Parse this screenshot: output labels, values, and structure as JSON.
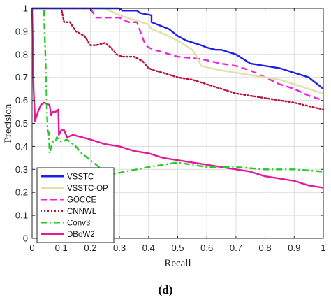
{
  "panel_label": "(d)",
  "chart_data": {
    "type": "line",
    "xlabel": "Recall",
    "ylabel": "Precision",
    "xlim": [
      0,
      1
    ],
    "ylim": [
      0,
      1
    ],
    "xticks": [
      "0",
      "0.1",
      "0.2",
      "0.3",
      "0.4",
      "0.5",
      "0.6",
      "0.7",
      "0.8",
      "0.9",
      "1"
    ],
    "yticks": [
      "0",
      "0.1",
      "0.2",
      "0.3",
      "0.4",
      "0.5",
      "0.6",
      "0.7",
      "0.8",
      "0.9",
      "1"
    ],
    "grid": true,
    "legend_position": "bottom-left",
    "series": [
      {
        "name": "VSSTC",
        "color": "#1f1fe6",
        "style": "solid",
        "points": [
          [
            0,
            1
          ],
          [
            0.3,
            1
          ],
          [
            0.31,
            0.99
          ],
          [
            0.36,
            0.99
          ],
          [
            0.37,
            0.98
          ],
          [
            0.41,
            0.97
          ],
          [
            0.41,
            0.94
          ],
          [
            0.47,
            0.91
          ],
          [
            0.49,
            0.89
          ],
          [
            0.5,
            0.88
          ],
          [
            0.53,
            0.86
          ],
          [
            0.58,
            0.84
          ],
          [
            0.6,
            0.83
          ],
          [
            0.63,
            0.82
          ],
          [
            0.65,
            0.82
          ],
          [
            0.7,
            0.8
          ],
          [
            0.75,
            0.76
          ],
          [
            0.8,
            0.75
          ],
          [
            0.85,
            0.74
          ],
          [
            0.9,
            0.72
          ],
          [
            0.95,
            0.7
          ],
          [
            1,
            0.65
          ]
        ]
      },
      {
        "name": "VSSTC-OP",
        "color": "#e0e0a8",
        "style": "solid",
        "points": [
          [
            0,
            1
          ],
          [
            0.25,
            1
          ],
          [
            0.3,
            0.97
          ],
          [
            0.35,
            0.95
          ],
          [
            0.4,
            0.93
          ],
          [
            0.41,
            0.91
          ],
          [
            0.45,
            0.89
          ],
          [
            0.5,
            0.86
          ],
          [
            0.55,
            0.82
          ],
          [
            0.57,
            0.78
          ],
          [
            0.58,
            0.75
          ],
          [
            0.65,
            0.73
          ],
          [
            0.7,
            0.72
          ],
          [
            0.75,
            0.71
          ],
          [
            0.8,
            0.7
          ],
          [
            0.85,
            0.69
          ],
          [
            0.9,
            0.67
          ],
          [
            0.95,
            0.65
          ],
          [
            1,
            0.63
          ]
        ]
      },
      {
        "name": "GOCCE",
        "color": "#ee22dd",
        "style": "dashed",
        "points": [
          [
            0,
            1
          ],
          [
            0.2,
            1
          ],
          [
            0.22,
            0.96
          ],
          [
            0.3,
            0.96
          ],
          [
            0.33,
            0.94
          ],
          [
            0.36,
            0.94
          ],
          [
            0.38,
            0.87
          ],
          [
            0.39,
            0.84
          ],
          [
            0.4,
            0.83
          ],
          [
            0.42,
            0.82
          ],
          [
            0.5,
            0.79
          ],
          [
            0.58,
            0.78
          ],
          [
            0.65,
            0.76
          ],
          [
            0.7,
            0.75
          ],
          [
            0.75,
            0.73
          ],
          [
            0.8,
            0.7
          ],
          [
            0.85,
            0.67
          ],
          [
            0.9,
            0.65
          ],
          [
            0.95,
            0.62
          ],
          [
            1,
            0.6
          ]
        ]
      },
      {
        "name": "CNNWL",
        "color": "#b5123d",
        "style": "dotted",
        "points": [
          [
            0,
            1
          ],
          [
            0.1,
            1
          ],
          [
            0.11,
            0.94
          ],
          [
            0.13,
            0.94
          ],
          [
            0.15,
            0.9
          ],
          [
            0.18,
            0.88
          ],
          [
            0.2,
            0.84
          ],
          [
            0.22,
            0.84
          ],
          [
            0.25,
            0.85
          ],
          [
            0.27,
            0.83
          ],
          [
            0.29,
            0.8
          ],
          [
            0.31,
            0.79
          ],
          [
            0.35,
            0.79
          ],
          [
            0.38,
            0.77
          ],
          [
            0.4,
            0.74
          ],
          [
            0.42,
            0.73
          ],
          [
            0.45,
            0.72
          ],
          [
            0.5,
            0.7
          ],
          [
            0.55,
            0.69
          ],
          [
            0.6,
            0.67
          ],
          [
            0.65,
            0.65
          ],
          [
            0.7,
            0.63
          ],
          [
            0.8,
            0.61
          ],
          [
            0.9,
            0.59
          ],
          [
            1,
            0.56
          ]
        ]
      },
      {
        "name": "Conv3",
        "color": "#22cc22",
        "style": "dashdot",
        "points": [
          [
            0,
            1
          ],
          [
            0.04,
            1
          ],
          [
            0.045,
            0.82
          ],
          [
            0.05,
            0.6
          ],
          [
            0.053,
            0.47
          ],
          [
            0.057,
            0.46
          ],
          [
            0.06,
            0.37
          ],
          [
            0.07,
            0.42
          ],
          [
            0.08,
            0.42
          ],
          [
            0.085,
            0.44
          ],
          [
            0.1,
            0.42
          ],
          [
            0.12,
            0.43
          ],
          [
            0.15,
            0.4
          ],
          [
            0.17,
            0.37
          ],
          [
            0.2,
            0.34
          ],
          [
            0.23,
            0.31
          ],
          [
            0.26,
            0.29
          ],
          [
            0.28,
            0.28
          ],
          [
            0.32,
            0.29
          ],
          [
            0.4,
            0.31
          ],
          [
            0.5,
            0.33
          ],
          [
            0.55,
            0.32
          ],
          [
            0.6,
            0.31
          ],
          [
            0.7,
            0.31
          ],
          [
            0.8,
            0.3
          ],
          [
            0.9,
            0.3
          ],
          [
            1,
            0.29
          ]
        ]
      },
      {
        "name": "DBoW2",
        "color": "#e6189a",
        "style": "solid",
        "points": [
          [
            0,
            1
          ],
          [
            0.005,
            0.65
          ],
          [
            0.01,
            0.51
          ],
          [
            0.02,
            0.55
          ],
          [
            0.03,
            0.58
          ],
          [
            0.04,
            0.59
          ],
          [
            0.05,
            0.585
          ],
          [
            0.06,
            0.58
          ],
          [
            0.065,
            0.535
          ],
          [
            0.07,
            0.55
          ],
          [
            0.08,
            0.55
          ],
          [
            0.09,
            0.56
          ],
          [
            0.092,
            0.45
          ],
          [
            0.1,
            0.47
          ],
          [
            0.11,
            0.47
          ],
          [
            0.12,
            0.44
          ],
          [
            0.14,
            0.45
          ],
          [
            0.2,
            0.43
          ],
          [
            0.25,
            0.41
          ],
          [
            0.3,
            0.4
          ],
          [
            0.35,
            0.38
          ],
          [
            0.4,
            0.37
          ],
          [
            0.45,
            0.35
          ],
          [
            0.5,
            0.34
          ],
          [
            0.55,
            0.33
          ],
          [
            0.6,
            0.32
          ],
          [
            0.65,
            0.31
          ],
          [
            0.7,
            0.3
          ],
          [
            0.75,
            0.29
          ],
          [
            0.8,
            0.27
          ],
          [
            0.85,
            0.26
          ],
          [
            0.9,
            0.25
          ],
          [
            0.95,
            0.23
          ],
          [
            1,
            0.22
          ]
        ]
      }
    ]
  }
}
